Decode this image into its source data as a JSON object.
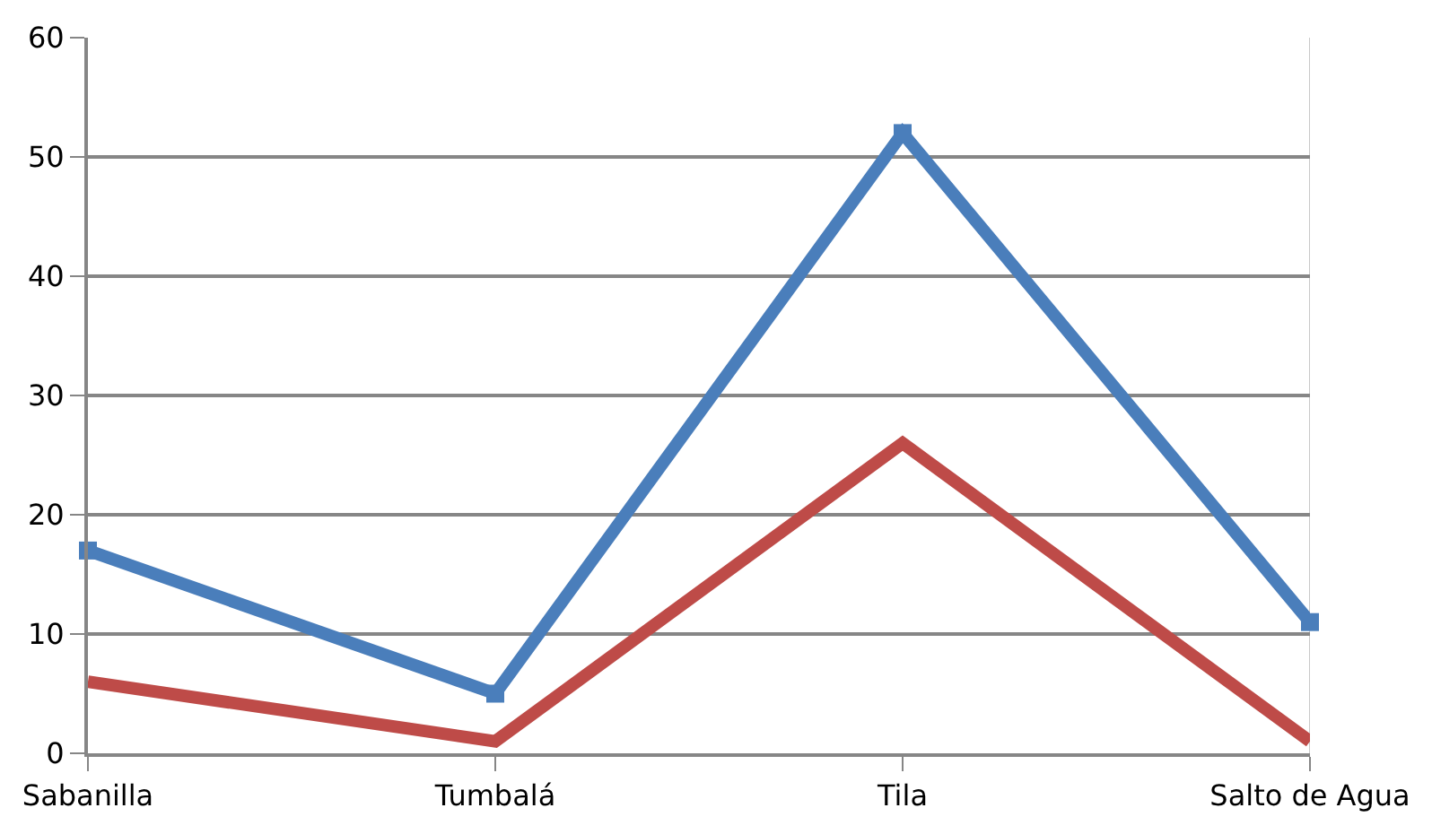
{
  "chart_data": {
    "type": "line",
    "categories": [
      "Sabanilla",
      "Tumbalá",
      "Tila",
      "Salto de Agua"
    ],
    "series": [
      {
        "color": "#4a7ebb",
        "values": [
          17,
          5,
          52,
          11
        ],
        "marker": "square"
      },
      {
        "color": "#be4b48",
        "values": [
          6,
          1,
          26,
          1
        ],
        "marker": "none"
      }
    ],
    "ylim": [
      0,
      60
    ],
    "yticks": [
      0,
      10,
      20,
      30,
      40,
      50,
      60
    ],
    "grid": "y",
    "line_style": "solid"
  }
}
